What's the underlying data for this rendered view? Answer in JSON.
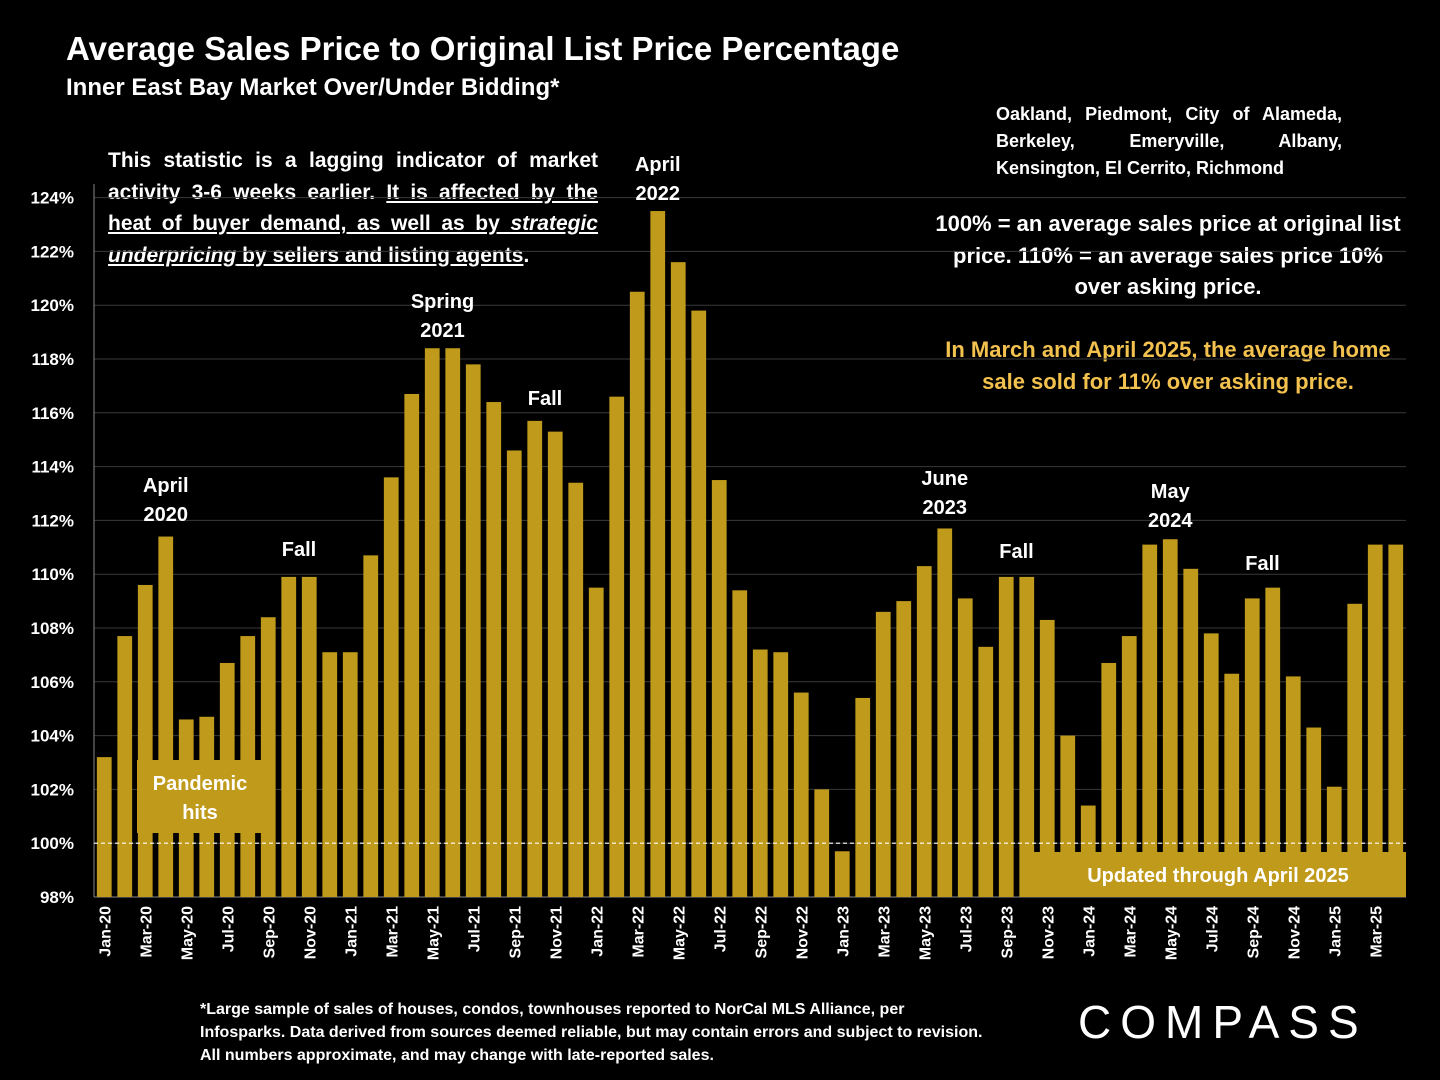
{
  "header": {
    "title": "Average Sales Price to Original List Price Percentage",
    "subtitle": "Inner East Bay Market Over/Under Bidding*"
  },
  "cities": "Oakland, Piedmont, City of Alameda, Berkeley, Emeryville, Albany, Kensington, El Cerrito, Richmond",
  "lagging_note": {
    "part1": "This statistic is a lagging indicator of market activity 3-6 weeks earlier. ",
    "part2": "It is affected by the heat of buyer demand, as well as by ",
    "part3": "strategic underpricing",
    "part4": " by sellers and listing agents",
    "part5": "."
  },
  "definition": "100% = an average sales price at original list price. 110% = an average sales price 10% over asking price.",
  "highlight": "In March and April 2025, the average home sale sold for 11% over asking price.",
  "footnote": "*Large sample of sales of houses, condos, townhouses reported to NorCal MLS Alliance, per Infosparks. Data derived from sources deemed reliable, but may contain errors and subject to revision. All numbers approximate, and may change with late-reported sales.",
  "logo": "COMPASS",
  "colors": {
    "bar": "#c09a1a",
    "highlight_text": "#f2c14e",
    "background": "#000000"
  },
  "chart_data": {
    "type": "bar",
    "ylim": [
      98,
      124.5
    ],
    "yticks": [
      "98%",
      "100%",
      "102%",
      "104%",
      "106%",
      "108%",
      "110%",
      "112%",
      "114%",
      "116%",
      "118%",
      "120%",
      "122%",
      "124%"
    ],
    "ytick_values": [
      98,
      100,
      102,
      104,
      106,
      108,
      110,
      112,
      114,
      116,
      118,
      120,
      122,
      124
    ],
    "reference_line": 100,
    "categories": [
      "Jan-20",
      "Feb-20",
      "Mar-20",
      "Apr-20",
      "May-20",
      "Jun-20",
      "Jul-20",
      "Aug-20",
      "Sep-20",
      "Oct-20",
      "Nov-20",
      "Dec-20",
      "Jan-21",
      "Feb-21",
      "Mar-21",
      "Apr-21",
      "May-21",
      "Jun-21",
      "Jul-21",
      "Aug-21",
      "Sep-21",
      "Oct-21",
      "Nov-21",
      "Dec-21",
      "Jan-22",
      "Feb-22",
      "Mar-22",
      "Apr-22",
      "May-22",
      "Jun-22",
      "Jul-22",
      "Aug-22",
      "Sep-22",
      "Oct-22",
      "Nov-22",
      "Dec-22",
      "Jan-23",
      "Feb-23",
      "Mar-23",
      "Apr-23",
      "May-23",
      "Jun-23",
      "Jul-23",
      "Aug-23",
      "Sep-23",
      "Oct-23",
      "Nov-23",
      "Dec-23",
      "Jan-24",
      "Feb-24",
      "Mar-24",
      "Apr-24",
      "May-24",
      "Jun-24",
      "Jul-24",
      "Aug-24",
      "Sep-24",
      "Oct-24",
      "Nov-24",
      "Dec-24",
      "Jan-25",
      "Feb-25",
      "Mar-25",
      "Apr-25"
    ],
    "xtick_labels": [
      "Jan-20",
      "Mar-20",
      "May-20",
      "Jul-20",
      "Sep-20",
      "Nov-20",
      "Jan-21",
      "Mar-21",
      "May-21",
      "Jul-21",
      "Sep-21",
      "Nov-21",
      "Jan-22",
      "Mar-22",
      "May-22",
      "Jul-22",
      "Sep-22",
      "Nov-22",
      "Jan-23",
      "Mar-23",
      "May-23",
      "Jul-23",
      "Sep-23",
      "Nov-23",
      "Jan-24",
      "Mar-24",
      "May-24",
      "Jul-24",
      "Sep-24",
      "Nov-24",
      "Jan-25",
      "Mar-25"
    ],
    "values": [
      103.2,
      107.7,
      109.6,
      111.4,
      104.6,
      104.7,
      106.7,
      107.7,
      108.4,
      109.9,
      109.9,
      107.1,
      107.1,
      110.7,
      113.6,
      116.7,
      118.4,
      118.4,
      117.8,
      116.4,
      114.6,
      115.7,
      115.3,
      113.4,
      109.5,
      116.6,
      120.5,
      123.5,
      121.6,
      119.8,
      113.5,
      109.4,
      107.2,
      107.1,
      105.6,
      102.0,
      99.7,
      105.4,
      108.6,
      109.0,
      110.3,
      111.7,
      109.1,
      107.3,
      109.9,
      109.9,
      108.3,
      104.0,
      101.4,
      106.7,
      107.7,
      111.1,
      111.3,
      110.2,
      107.8,
      106.3,
      109.1,
      109.5,
      106.2,
      104.3,
      102.1,
      108.9,
      111.1,
      111.1
    ],
    "annotations": [
      {
        "text": "April",
        "text2": "2020",
        "index": 3
      },
      {
        "text": "Fall",
        "text2": "",
        "index": 9.5
      },
      {
        "text": "Spring",
        "text2": "2021",
        "index": 16.5
      },
      {
        "text": "Fall",
        "text2": "",
        "index": 21.5
      },
      {
        "text": "April",
        "text2": "2022",
        "index": 27
      },
      {
        "text": "June",
        "text2": "2023",
        "index": 41
      },
      {
        "text": "Fall",
        "text2": "",
        "index": 44.5
      },
      {
        "text": "May",
        "text2": "2024",
        "index": 52
      },
      {
        "text": "Fall",
        "text2": "",
        "index": 56.5
      }
    ],
    "boxes": [
      {
        "text": "Pandemic",
        "text2": "hits"
      },
      {
        "text": "Updated through April 2025",
        "text2": ""
      }
    ]
  }
}
